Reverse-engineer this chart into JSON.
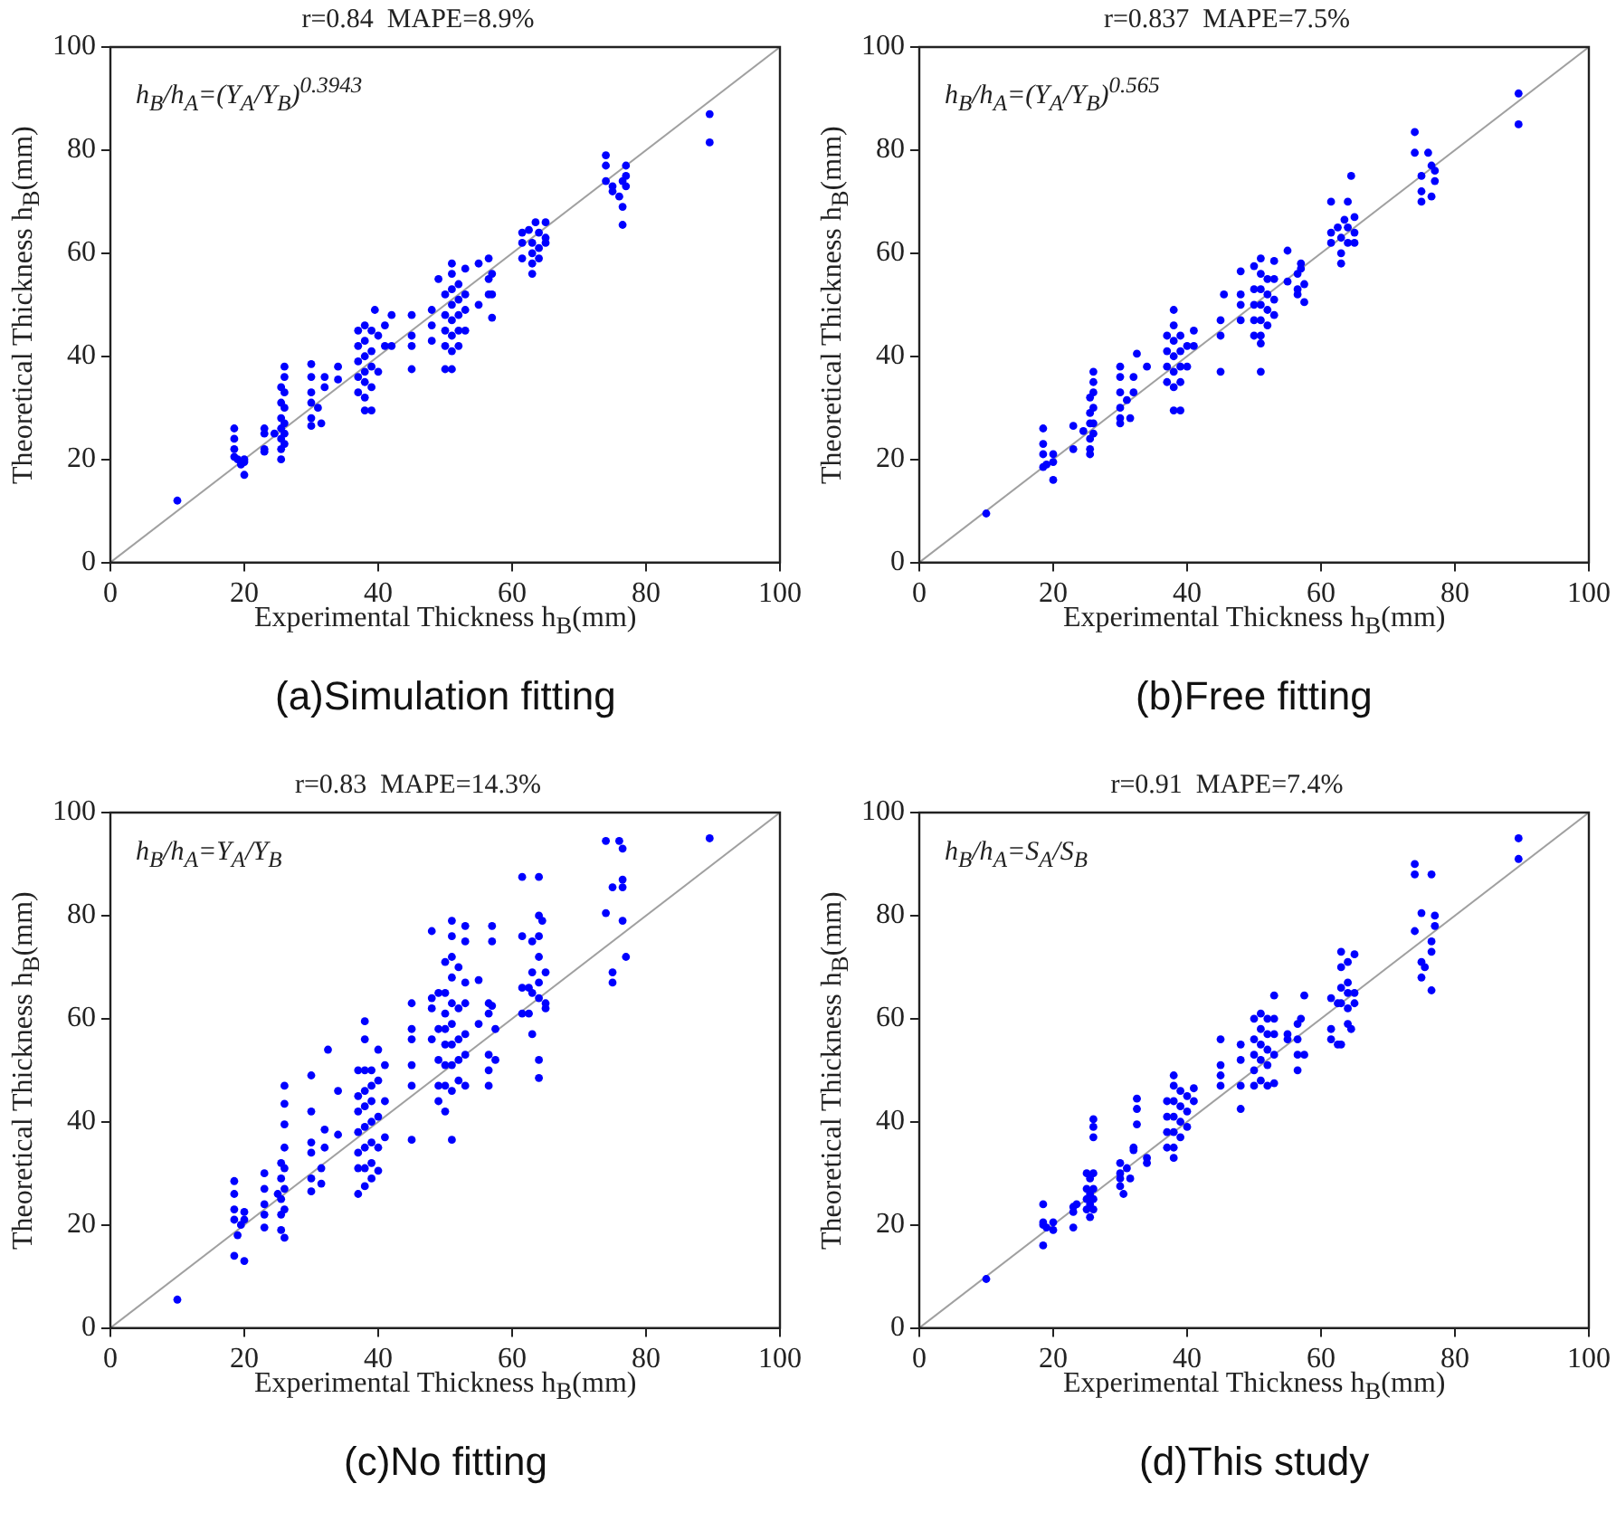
{
  "chart_data": [
    {
      "type": "scatter",
      "title": "r=0.84  MAPE=8.9%",
      "xlabel": "Experimental Thickness h$_{B}$(mm)",
      "ylabel": "Theoretical Thickness h$_{B}$(mm)",
      "annotations": [
        "h$_{B}$/h$_{A}$=(Y$_{A}$/Y$_{B}$)$^{0.3943}$",
        "(a)Simulation fitting"
      ],
      "xlim": [
        0,
        100
      ],
      "ylim": [
        0,
        100
      ],
      "xticks": [
        0,
        20,
        40,
        60,
        80,
        100
      ],
      "yticks": [
        0,
        20,
        40,
        60,
        80,
        100
      ],
      "grid": false,
      "marker": "circle",
      "series": [
        {
          "type": "scatter",
          "color": "#0000ff",
          "x": [
            10,
            18.5,
            18.5,
            18.5,
            18.5,
            19,
            19.5,
            20,
            20,
            20,
            23,
            23,
            23,
            23,
            24.5,
            25.5,
            25.5,
            25.5,
            25.5,
            25.5,
            25.5,
            25.5,
            26,
            26,
            26,
            26,
            26,
            26,
            26,
            30,
            30,
            30,
            30,
            30,
            30,
            31,
            31.5,
            32,
            32,
            34,
            34,
            37,
            37,
            37,
            37,
            37,
            38,
            38,
            38,
            38,
            38,
            38,
            38,
            39,
            39,
            39,
            39,
            39,
            39.5,
            40,
            40,
            41,
            41,
            42,
            42,
            45,
            45,
            45,
            45,
            48,
            48,
            48,
            49,
            50,
            50,
            50,
            50,
            50,
            51,
            51,
            51,
            51,
            51,
            51,
            51,
            51,
            52,
            52,
            52,
            52,
            52,
            53,
            53,
            53,
            53,
            55,
            55,
            56.5,
            56.5,
            56.5,
            57,
            57,
            57,
            61.5,
            61.5,
            61.5,
            62.5,
            63,
            63,
            63,
            63,
            63.5,
            64,
            64,
            64,
            65,
            65,
            65,
            74,
            74,
            74,
            75,
            75,
            76,
            76.5,
            76.5,
            76.5,
            77,
            77,
            77,
            89.5,
            89.5
          ],
          "values": [
            12,
            26,
            24,
            22,
            20.5,
            20,
            19,
            20,
            17,
            19.5,
            26,
            25,
            22,
            21.5,
            25,
            34,
            31,
            28,
            26,
            24,
            22,
            20,
            38,
            36,
            33,
            30,
            27,
            25,
            23,
            38.5,
            36,
            33,
            31,
            28,
            26.5,
            30,
            27,
            36,
            34,
            38,
            35.5,
            45,
            42,
            39,
            36,
            33,
            46,
            43,
            40,
            37,
            35,
            32,
            29.5,
            45,
            41,
            38,
            34,
            29.5,
            49,
            44,
            37,
            46,
            42,
            48,
            42,
            48,
            44,
            42,
            37.5,
            49,
            46,
            43,
            55,
            52,
            48,
            45,
            42,
            37.5,
            58,
            56,
            53,
            50,
            47,
            44,
            41,
            37.5,
            54,
            51,
            48,
            45,
            42,
            57,
            52,
            49,
            45,
            58,
            50,
            59,
            55,
            52,
            56,
            52,
            47.5,
            64,
            62,
            59,
            64.5,
            62,
            60,
            58,
            56,
            66,
            64,
            61,
            59,
            66,
            63,
            62,
            79,
            77,
            74,
            72,
            73,
            71,
            74,
            69,
            65.5,
            77,
            75,
            73,
            87,
            81.5
          ]
        },
        {
          "type": "line",
          "color": "#a0a0a0",
          "marker": "none",
          "x": [
            0,
            100
          ],
          "values": [
            0,
            100
          ]
        }
      ]
    },
    {
      "type": "scatter",
      "title": "r=0.837  MAPE=7.5%",
      "xlabel": "Experimental Thickness h$_{B}$(mm)",
      "ylabel": "Theoretical Thickness h$_{B}$(mm)",
      "annotations": [
        "h$_{B}$/h$_{A}$=(Y$_{A}$/Y$_{B}$)$^{0.565}$",
        "(b)Free fitting"
      ],
      "xlim": [
        0,
        100
      ],
      "ylim": [
        0,
        100
      ],
      "xticks": [
        0,
        20,
        40,
        60,
        80,
        100
      ],
      "yticks": [
        0,
        20,
        40,
        60,
        80,
        100
      ],
      "grid": false,
      "marker": "circle",
      "series": [
        {
          "type": "scatter",
          "color": "#0000ff",
          "x": [
            10,
            18.5,
            18.5,
            18.5,
            18.5,
            19,
            20,
            20,
            20,
            23,
            23,
            24.5,
            25.5,
            25.5,
            25.5,
            25.5,
            25.5,
            25.5,
            26,
            26,
            26,
            26,
            26,
            26,
            30,
            30,
            30,
            30,
            30,
            30,
            31,
            31.5,
            32,
            32,
            32.5,
            34,
            37,
            37,
            37,
            37,
            38,
            38,
            38,
            38,
            38,
            38,
            38,
            39,
            39,
            39,
            39,
            39,
            40,
            40,
            41,
            41,
            45,
            45,
            45,
            45.5,
            48,
            48,
            48,
            48,
            50,
            50,
            50,
            50,
            50,
            51,
            51,
            51,
            51,
            51,
            51,
            51,
            51,
            52,
            52,
            52,
            52,
            53,
            53,
            53,
            53,
            55,
            55,
            56.5,
            56.5,
            56.5,
            57,
            57,
            57.5,
            57.5,
            61.5,
            61.5,
            61.5,
            62.5,
            63,
            63,
            63,
            63.5,
            64,
            64,
            64,
            64.5,
            65,
            65,
            65,
            74,
            74,
            75,
            75,
            75,
            76,
            76.5,
            76.5,
            77,
            77,
            89.5,
            89.5
          ],
          "values": [
            9.5,
            26,
            23,
            21,
            18.5,
            19,
            21,
            19.5,
            16,
            26.5,
            22,
            25.5,
            32,
            29,
            27,
            24,
            22,
            21,
            37,
            35,
            33,
            30,
            27,
            25,
            38,
            36,
            33,
            30,
            28,
            27,
            31.5,
            28,
            36,
            33,
            40.5,
            38,
            44,
            41,
            38,
            35,
            49,
            46,
            43,
            40,
            37,
            34,
            29.5,
            44,
            41,
            38,
            35,
            29.5,
            42,
            38,
            45,
            42,
            47,
            44,
            37,
            52,
            56.5,
            52,
            50,
            47,
            57.5,
            53,
            50,
            47,
            44,
            59,
            56,
            53,
            50,
            47,
            44,
            42.5,
            37,
            55,
            52,
            49,
            46,
            58.5,
            55,
            51,
            48,
            60.5,
            54.5,
            56,
            53,
            52,
            58,
            57,
            54,
            50.5,
            70,
            64,
            62,
            65,
            63,
            60,
            58,
            66.5,
            70,
            65,
            62,
            75,
            67,
            64,
            62,
            83.5,
            79.5,
            75,
            72,
            70,
            79.5,
            77,
            71,
            76,
            74,
            91,
            85
          ]
        },
        {
          "type": "line",
          "color": "#a0a0a0",
          "marker": "none",
          "x": [
            0,
            100
          ],
          "values": [
            0,
            100
          ]
        }
      ]
    },
    {
      "type": "scatter",
      "title": "r=0.83  MAPE=14.3%",
      "xlabel": "Experimental Thickness h$_{B}$(mm)",
      "ylabel": "Theoretical Thickness h$_{B}$(mm)",
      "annotations": [
        "h$_{B}$/h$_{A}$=Y$_{A}$/Y$_{B}$",
        "(c)No fitting"
      ],
      "xlim": [
        0,
        100
      ],
      "ylim": [
        0,
        100
      ],
      "xticks": [
        0,
        20,
        40,
        60,
        80,
        100
      ],
      "yticks": [
        0,
        20,
        40,
        60,
        80,
        100
      ],
      "grid": false,
      "marker": "circle",
      "series": [
        {
          "type": "scatter",
          "color": "#0000ff",
          "x": [
            10,
            18.5,
            18.5,
            18.5,
            18.5,
            18.5,
            19,
            19.5,
            20,
            20,
            20,
            23,
            23,
            23,
            23,
            23,
            25,
            25.5,
            25.5,
            25.5,
            25.5,
            25.5,
            26,
            26,
            26,
            26,
            26,
            26,
            26,
            26,
            30,
            30,
            30,
            30,
            30,
            30,
            31.5,
            31.5,
            32,
            32,
            32.5,
            34,
            34,
            37,
            37,
            37,
            37,
            37,
            37,
            37,
            38,
            38,
            38,
            38,
            38,
            38,
            38,
            38,
            38,
            39,
            39,
            39,
            39,
            39,
            39,
            39,
            40,
            40,
            40,
            40,
            40,
            41,
            41,
            41,
            45,
            45,
            45,
            45,
            45,
            45,
            48,
            48,
            48,
            48,
            49,
            49,
            49,
            49,
            49,
            50,
            50,
            50,
            50,
            50,
            50,
            50,
            50,
            51,
            51,
            51,
            51,
            51,
            51,
            51,
            51,
            51,
            51,
            52,
            52,
            52,
            52,
            52,
            53,
            53,
            53,
            53,
            53,
            53,
            53,
            55,
            55,
            56.5,
            56.5,
            56.5,
            56.5,
            56.5,
            57,
            57,
            57,
            57.5,
            57.5,
            61.5,
            61.5,
            61.5,
            61.5,
            62.5,
            62.5,
            63,
            63,
            63,
            63,
            64,
            64,
            64,
            64,
            64,
            64,
            64,
            64,
            64.5,
            65,
            65,
            65,
            74,
            74,
            75,
            75,
            75,
            76,
            76.5,
            76.5,
            76.5,
            76.5,
            77,
            89.5
          ],
          "values": [
            5.5,
            28.5,
            26,
            23,
            21,
            14,
            18,
            20,
            22.5,
            21,
            13,
            30,
            27,
            24,
            22,
            19.5,
            26,
            32,
            29,
            25,
            22,
            19,
            47,
            43.5,
            39.5,
            35,
            31,
            27,
            23,
            17.5,
            49,
            42,
            36,
            34,
            29,
            26.5,
            31,
            28,
            38.5,
            35,
            54,
            46,
            37.5,
            50,
            45,
            42,
            38,
            34,
            31,
            26,
            59.5,
            56,
            50,
            46,
            43,
            39,
            35,
            31,
            27.5,
            50,
            47,
            44,
            40,
            36,
            32,
            29,
            54,
            48,
            41,
            35,
            30.5,
            51,
            44,
            37,
            63,
            58,
            56,
            51,
            47,
            36.5,
            77,
            64,
            62,
            56,
            65,
            58,
            52,
            47,
            44,
            71,
            65,
            61,
            58,
            55,
            51,
            47,
            42,
            79,
            76,
            72,
            68,
            63,
            59,
            55,
            51,
            46,
            36.5,
            70,
            62,
            56,
            52,
            48,
            78,
            75,
            67,
            63,
            57,
            53,
            47,
            67.5,
            59,
            63,
            61,
            53,
            50,
            47,
            78,
            75,
            62.5,
            58,
            52,
            87.5,
            76,
            66,
            61,
            66,
            61,
            75,
            69,
            65,
            57,
            87.5,
            80,
            76,
            72,
            67,
            64,
            52,
            48.5,
            79,
            69,
            63,
            62,
            94.5,
            80.5,
            85.5,
            69,
            67,
            94.5,
            93,
            87,
            85.5,
            79,
            72,
            95
          ]
        },
        {
          "type": "line",
          "color": "#a0a0a0",
          "marker": "none",
          "x": [
            0,
            100
          ],
          "values": [
            0,
            100
          ]
        }
      ]
    },
    {
      "type": "scatter",
      "title": "r=0.91  MAPE=7.4%",
      "xlabel": "Experimental Thickness h$_{B}$(mm)",
      "ylabel": "Theoretical Thickness h$_{B}$(mm)",
      "annotations": [
        "h$_{B}$/h$_{A}$=S$_{A}$/S$_{B}$",
        "(d)This study"
      ],
      "xlim": [
        0,
        100
      ],
      "ylim": [
        0,
        100
      ],
      "xticks": [
        0,
        20,
        40,
        60,
        80,
        100
      ],
      "yticks": [
        0,
        20,
        40,
        60,
        80,
        100
      ],
      "grid": false,
      "marker": "circle",
      "series": [
        {
          "type": "scatter",
          "color": "#0000ff",
          "x": [
            10,
            18.5,
            18.5,
            18.5,
            18.5,
            19,
            20,
            20,
            23,
            23,
            23,
            23.5,
            25,
            25,
            25,
            25,
            25.5,
            25.5,
            25.5,
            25.5,
            26,
            26,
            26,
            26,
            26,
            26,
            26,
            30,
            30,
            30,
            30,
            30.5,
            31,
            31.5,
            32,
            32,
            32.5,
            32.5,
            32.5,
            34,
            34,
            37,
            37,
            37,
            37,
            38,
            38,
            38,
            38,
            38,
            38,
            38,
            39,
            39,
            39,
            39,
            40,
            40,
            40,
            41,
            41,
            45,
            45,
            45,
            45,
            48,
            48,
            48,
            48,
            50,
            50,
            50,
            50,
            50,
            51,
            51,
            51,
            51,
            51,
            52,
            52,
            52,
            52,
            52,
            53,
            53,
            53,
            53,
            53,
            55,
            55,
            56.5,
            56.5,
            56.5,
            56.5,
            57,
            57.5,
            57.5,
            61.5,
            61.5,
            61.5,
            62.5,
            62.5,
            63,
            63,
            63,
            63,
            63,
            64,
            64,
            64,
            64,
            64,
            64.5,
            65,
            65,
            65,
            74,
            74,
            74,
            75,
            75,
            75,
            75.5,
            76.5,
            76.5,
            76.5,
            76.5,
            77,
            77,
            89.5,
            89.5
          ],
          "values": [
            9.5,
            24,
            20.5,
            20,
            16,
            19.5,
            20.5,
            19,
            23.5,
            22.5,
            19.5,
            24,
            30,
            27,
            25,
            23,
            29,
            26,
            24,
            21.5,
            40.5,
            39,
            37,
            30,
            27,
            25,
            23,
            32,
            30,
            29,
            27.5,
            26,
            31,
            29,
            35,
            34.5,
            44.5,
            42.5,
            39.5,
            33,
            32,
            44,
            41,
            38,
            35,
            49,
            47,
            44,
            41,
            38,
            35,
            33,
            46,
            43,
            40,
            37,
            45,
            42,
            39,
            46.5,
            44,
            56,
            51,
            49,
            47,
            55,
            52,
            47,
            42.5,
            60,
            56,
            53,
            50,
            47,
            61,
            58,
            55,
            52,
            48,
            60,
            57,
            54,
            51,
            47,
            64.5,
            60,
            57,
            53,
            47.5,
            57,
            56,
            59,
            56,
            53,
            50,
            60,
            64.5,
            53,
            64,
            58,
            56,
            63,
            55,
            73,
            70,
            66,
            63,
            55,
            71,
            67,
            65,
            62,
            59,
            58,
            72.5,
            65,
            63,
            90,
            88,
            77,
            80.5,
            71,
            68,
            70,
            88,
            75,
            73,
            65.5,
            80,
            78,
            95,
            91
          ]
        },
        {
          "type": "line",
          "color": "#a0a0a0",
          "marker": "none",
          "x": [
            0,
            100
          ],
          "values": [
            0,
            100
          ]
        }
      ]
    }
  ]
}
